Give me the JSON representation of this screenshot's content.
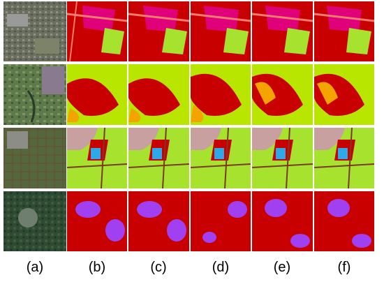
{
  "figure": {
    "column_labels": [
      "(a)",
      "(b)",
      "(c)",
      "(d)",
      "(e)",
      "(f)"
    ],
    "rows": 4,
    "class_colors": {
      "dark_red": "#C80000",
      "pink": "#E6177F",
      "magenta": "#E0007A",
      "lime": "#A6E22E",
      "yellow_green": "#B8E600",
      "orange": "#F4A300",
      "salmon": "#F07C70",
      "mauve": "#C8A0A0",
      "cyan": "#2EA8E6",
      "brown": "#7A3A20",
      "purple": "#A040F0"
    }
  }
}
